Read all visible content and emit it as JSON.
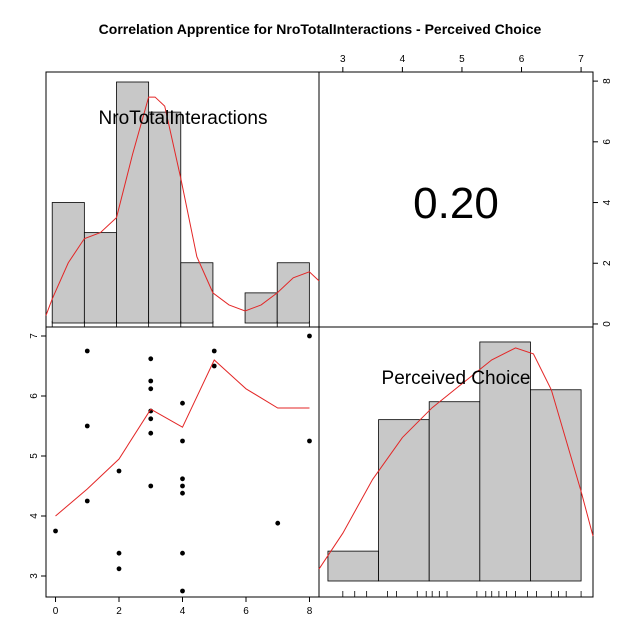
{
  "title": "Correlation Apprentice for NroTotalInteractions - Perceived Choice",
  "chart_data": {
    "type": "scatter-matrix",
    "variables": [
      "NroTotalInteractions",
      "Perceived Choice"
    ],
    "correlation_label": "0.20",
    "colors": {
      "bars": "#c8c8c8",
      "smooth": "#e32626",
      "points": "#000000"
    },
    "hist_x": {
      "label": "NroTotalInteractions",
      "axis_range": [
        -0.1,
        8.3
      ],
      "ticks": [
        0,
        2,
        4,
        6,
        8
      ],
      "bins": [
        {
          "from": 0,
          "to": 1,
          "count": 4
        },
        {
          "from": 1,
          "to": 2,
          "count": 3
        },
        {
          "from": 2,
          "to": 3,
          "count": 8
        },
        {
          "from": 3,
          "to": 4,
          "count": 7
        },
        {
          "from": 4,
          "to": 5,
          "count": 2
        },
        {
          "from": 5,
          "to": 6,
          "count": 0
        },
        {
          "from": 6,
          "to": 7,
          "count": 1
        },
        {
          "from": 7,
          "to": 8,
          "count": 2
        }
      ],
      "rug": [
        0,
        1,
        2,
        3,
        4,
        5,
        7,
        8
      ],
      "density": [
        [
          -0.5,
          0.25
        ],
        [
          0,
          0.8
        ],
        [
          0.5,
          2.0
        ],
        [
          1,
          2.8
        ],
        [
          1.5,
          3.0
        ],
        [
          2,
          3.5
        ],
        [
          2.5,
          5.6
        ],
        [
          3,
          7.5
        ],
        [
          3.2,
          7.5
        ],
        [
          3.5,
          7.2
        ],
        [
          4,
          4.8
        ],
        [
          4.5,
          2.2
        ],
        [
          5,
          1.0
        ],
        [
          5.5,
          0.6
        ],
        [
          6,
          0.4
        ],
        [
          6.5,
          0.6
        ],
        [
          7,
          1.0
        ],
        [
          7.5,
          1.5
        ],
        [
          8,
          1.7
        ],
        [
          8.3,
          1.4
        ]
      ]
    },
    "hist_y": {
      "label": "Perceived Choice",
      "axis_range": [
        2.6,
        7.2
      ],
      "ticks": [
        3,
        4,
        5,
        6,
        7
      ],
      "bins": [
        {
          "from": 2.75,
          "to": 3.6,
          "count": 1
        },
        {
          "from": 3.6,
          "to": 4.45,
          "count": 5.4
        },
        {
          "from": 4.45,
          "to": 5.3,
          "count": 6
        },
        {
          "from": 5.3,
          "to": 6.15,
          "count": 8
        },
        {
          "from": 6.15,
          "to": 7.0,
          "count": 6.4
        }
      ],
      "count_range": [
        0,
        8.3
      ],
      "rug": [
        3.0,
        3.2,
        3.4,
        3.75,
        3.9,
        4.25,
        4.4,
        4.5,
        4.62,
        4.75,
        5.25,
        5.4,
        5.5,
        5.62,
        5.75,
        5.9,
        6.1,
        6.25,
        6.5,
        6.62,
        6.75,
        7.0
      ],
      "density": [
        [
          2.6,
          0.4
        ],
        [
          3.0,
          1.6
        ],
        [
          3.5,
          3.4
        ],
        [
          4.0,
          4.8
        ],
        [
          4.5,
          5.8
        ],
        [
          5.0,
          6.6
        ],
        [
          5.5,
          7.4
        ],
        [
          5.9,
          7.8
        ],
        [
          6.2,
          7.6
        ],
        [
          6.5,
          6.4
        ],
        [
          7.0,
          3.0
        ],
        [
          7.2,
          1.5
        ]
      ]
    },
    "scatter": {
      "x_ticks": [
        0,
        2,
        4,
        6,
        8
      ],
      "y_ticks": [
        3,
        4,
        5,
        6,
        7
      ],
      "x_range": [
        -0.3,
        8.3
      ],
      "y_range": [
        2.65,
        7.15
      ],
      "points": [
        [
          0,
          3.75
        ],
        [
          1,
          6.75
        ],
        [
          1,
          5.5
        ],
        [
          1,
          4.25
        ],
        [
          2,
          4.75
        ],
        [
          2,
          3.38
        ],
        [
          2,
          3.12
        ],
        [
          3,
          6.62
        ],
        [
          3,
          6.25
        ],
        [
          3,
          6.12
        ],
        [
          3,
          5.75
        ],
        [
          3,
          5.62
        ],
        [
          3,
          5.38
        ],
        [
          3,
          4.5
        ],
        [
          4,
          5.88
        ],
        [
          4,
          5.25
        ],
        [
          4,
          4.62
        ],
        [
          4,
          4.5
        ],
        [
          4,
          4.38
        ],
        [
          4,
          3.38
        ],
        [
          4,
          2.75
        ],
        [
          5,
          6.75
        ],
        [
          5,
          6.5
        ],
        [
          7,
          3.88
        ],
        [
          8,
          7.0
        ],
        [
          8,
          5.25
        ]
      ],
      "smooth": [
        [
          0,
          4.0
        ],
        [
          1,
          4.45
        ],
        [
          2,
          4.95
        ],
        [
          3,
          5.78
        ],
        [
          4,
          5.48
        ],
        [
          5,
          6.6
        ],
        [
          6,
          6.12
        ],
        [
          7,
          5.8
        ],
        [
          8,
          5.8
        ]
      ]
    },
    "upper_top_ticks": [
      3,
      4,
      5,
      6,
      7
    ],
    "upper_right_ticks": [
      0,
      2,
      4,
      6,
      8
    ]
  }
}
